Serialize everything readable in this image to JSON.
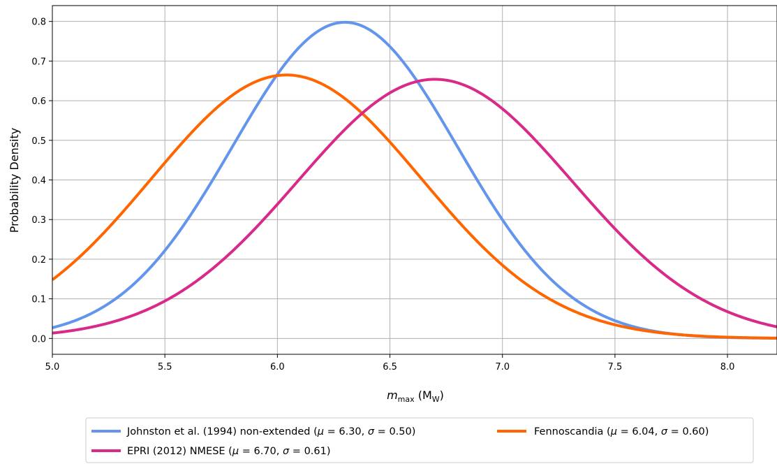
{
  "chart_data": {
    "type": "line",
    "xlabel_main": "m",
    "xlabel_sub": "max",
    "xlabel_unit_open": " (M",
    "xlabel_unit_sub": "W",
    "xlabel_unit_close": ")",
    "ylabel": "Probability Density",
    "xlim": [
      5.0,
      8.22
    ],
    "ylim": [
      -0.04,
      0.84
    ],
    "xticks": [
      "5.0",
      "5.5",
      "6.0",
      "6.5",
      "7.0",
      "7.5",
      "8.0"
    ],
    "yticks": [
      "0.0",
      "0.1",
      "0.2",
      "0.3",
      "0.4",
      "0.5",
      "0.6",
      "0.7",
      "0.8"
    ],
    "grid": true,
    "legend_position": "bottom-center, below plot",
    "series": [
      {
        "name": "Johnston et al. (1994) non-extended",
        "mu": "6.30",
        "sigma": "0.50",
        "mean": 6.3,
        "sd": 0.5,
        "color": "#6495ED"
      },
      {
        "name": "Fennoscandia",
        "mu": "6.04",
        "sigma": "0.60",
        "mean": 6.04,
        "sd": 0.6,
        "color": "#FF6600"
      },
      {
        "name": "EPRI (2012) NMESE",
        "mu": "6.70",
        "sigma": "0.61",
        "mean": 6.7,
        "sd": 0.61,
        "color": "#D92A8A"
      }
    ]
  }
}
